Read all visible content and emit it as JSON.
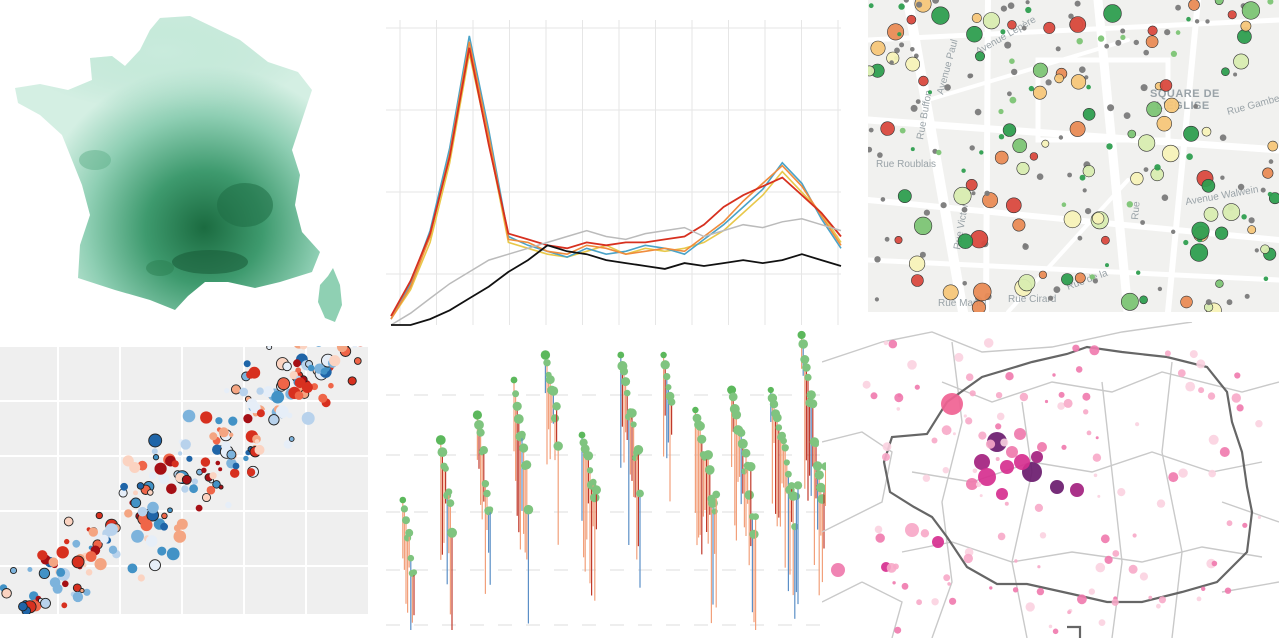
{
  "citymap": {
    "streets": [
      {
        "label": "Avenue Lepère"
      },
      {
        "label": "Avenue Paul"
      },
      {
        "label": "Rue Buffon"
      },
      {
        "label": "Rue Roublais"
      },
      {
        "label": "Rue Victor"
      },
      {
        "label": "Rue Mariel"
      },
      {
        "label": "Rue Cirard"
      },
      {
        "label": "Rue de la"
      },
      {
        "label": "Avenue Walwein"
      },
      {
        "label": "Rue Gambetta"
      },
      {
        "label": "Rue"
      }
    ],
    "square_label_1": "SQUARE DE",
    "square_label_2": "L'ÉGLISE"
  },
  "colors": {
    "france_light": "#d9f0e6",
    "france_dark": "#0f5e34",
    "line_yellow": "#e8c84a",
    "line_blue": "#4aa3c8",
    "line_orange": "#f08c3c",
    "line_red": "#d7301f",
    "line_grey": "#bbbbbb",
    "line_black": "#111111",
    "strip_green": "#7fc47f",
    "strip_red": "#e4603a",
    "paris_magenta": "#d62f8f",
    "paris_purple": "#6a1b6e"
  },
  "chart_data": [
    {
      "type": "line",
      "x": [
        0,
        1,
        2,
        3,
        4,
        5,
        6,
        7,
        8,
        9,
        10,
        11,
        12,
        13,
        14,
        15,
        16,
        17,
        18,
        19,
        20,
        21,
        22,
        23
      ],
      "series": [
        {
          "values": [
            2,
            12,
            28,
            55,
            92,
            62,
            28,
            26,
            24,
            23,
            25,
            27,
            24,
            26,
            25,
            26,
            28,
            32,
            38,
            44,
            52,
            45,
            38,
            28
          ]
        },
        {
          "values": [
            2,
            14,
            32,
            60,
            98,
            66,
            30,
            27,
            25,
            23,
            26,
            24,
            25,
            27,
            26,
            24,
            29,
            34,
            40,
            46,
            55,
            48,
            36,
            26
          ]
        },
        {
          "values": [
            2,
            13,
            30,
            58,
            96,
            64,
            29,
            28,
            25,
            24,
            27,
            26,
            24,
            25,
            26,
            25,
            30,
            35,
            42,
            48,
            54,
            47,
            37,
            27
          ]
        },
        {
          "values": [
            3,
            15,
            31,
            57,
            94,
            61,
            31,
            29,
            27,
            26,
            28,
            27,
            28,
            28,
            29,
            30,
            34,
            40,
            44,
            47,
            50,
            44,
            38,
            30
          ]
        },
        {
          "values": [
            0,
            4,
            9,
            14,
            18,
            22,
            24,
            26,
            28,
            30,
            32,
            30,
            29,
            31,
            32,
            33,
            30,
            32,
            34,
            33,
            35,
            36,
            34,
            32
          ]
        },
        {
          "values": [
            0,
            0,
            2,
            5,
            9,
            13,
            18,
            22,
            27,
            25,
            24,
            22,
            21,
            20,
            19,
            21,
            20,
            21,
            22,
            21,
            22,
            24,
            22,
            20
          ]
        }
      ]
    },
    {
      "type": "scatter",
      "series": [
        {
          "values": [
            [
              12,
              24
            ],
            [
              18,
              30
            ],
            [
              22,
              38
            ],
            [
              28,
              42
            ],
            [
              34,
              50
            ],
            [
              40,
              58
            ],
            [
              46,
              66
            ],
            [
              52,
              74
            ]
          ]
        },
        {
          "values": [
            [
              14,
              18
            ],
            [
              20,
              22
            ],
            [
              26,
              30
            ],
            [
              32,
              36
            ],
            [
              38,
              44
            ],
            [
              44,
              52
            ],
            [
              50,
              60
            ],
            [
              56,
              68
            ]
          ]
        }
      ]
    }
  ]
}
